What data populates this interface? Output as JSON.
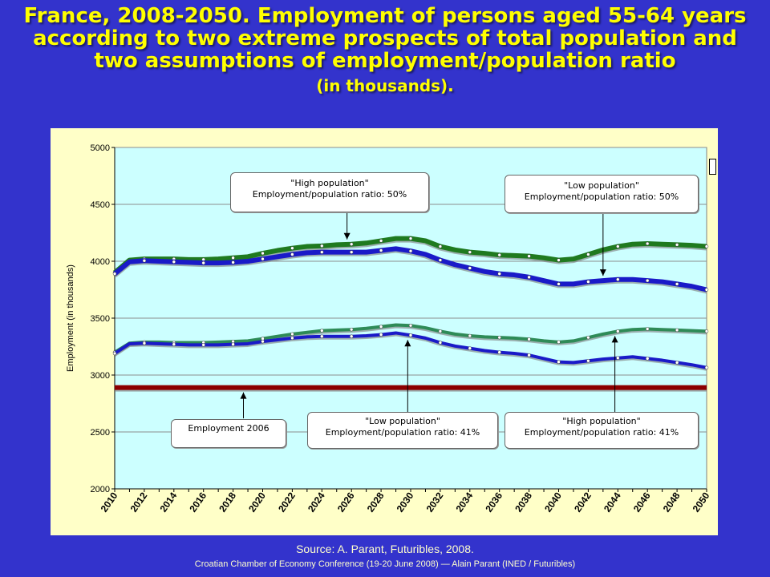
{
  "title": {
    "line1": "France, 2008-2050. Employment of persons aged  55-64 years",
    "line2": "according to two extreme prospects of total population and",
    "line3": "two assumptions of employment/population ratio",
    "line4": "(in thousands)."
  },
  "source": "Source: A. Parant, Futuribles, 2008.",
  "footer": "Croatian Chamber of Economy Conference (19-20 June 2008) — Alain Parant (INED / Futuribles)",
  "callouts": {
    "c1": {
      "l1": "\"High population\"",
      "l2": "Employment/population ratio: 50%"
    },
    "c2": {
      "l1": "\"Low population\"",
      "l2": "Employment/population ratio: 50%"
    },
    "c3": {
      "l1": "Employment 2006",
      "l2": ""
    },
    "c4": {
      "l1": "\"Low population\"",
      "l2": "Employment/population ratio: 41%"
    },
    "c5": {
      "l1": "\"High population\"",
      "l2": "Employment/population ratio: 41%"
    }
  },
  "colors": {
    "high50": "#1f7a1f",
    "low50": "#1a1ac8",
    "high41": "#2e8b57",
    "low41": "#1a1ac8",
    "emp2006": "#8b0000",
    "plot_bg": "#ccffff",
    "panel_bg": "#ffffc8"
  },
  "chart_data": {
    "type": "line",
    "xlabel": "",
    "ylabel": "Employment (in thousands)",
    "ylim": [
      2000,
      5000
    ],
    "yticks": [
      2000,
      2500,
      3000,
      3500,
      4000,
      4500,
      5000
    ],
    "xticks": [
      "2010",
      "2012",
      "2014",
      "2016",
      "2018",
      "2020",
      "2022",
      "2024",
      "2026",
      "2028",
      "2030",
      "2032",
      "2034",
      "2036",
      "2038",
      "2040",
      "2042",
      "2044",
      "2046",
      "2048",
      "2050"
    ],
    "x": [
      2010,
      2011,
      2012,
      2013,
      2014,
      2015,
      2016,
      2017,
      2018,
      2019,
      2020,
      2021,
      2022,
      2023,
      2024,
      2025,
      2026,
      2027,
      2028,
      2029,
      2030,
      2031,
      2032,
      2033,
      2034,
      2035,
      2036,
      2037,
      2038,
      2039,
      2040,
      2041,
      2042,
      2043,
      2044,
      2045,
      2046,
      2047,
      2048,
      2049,
      2050
    ],
    "grid": true,
    "series": [
      {
        "key": "high50",
        "values": [
          3900,
          4010,
          4020,
          4020,
          4020,
          4015,
          4015,
          4020,
          4030,
          4040,
          4070,
          4095,
          4115,
          4130,
          4135,
          4145,
          4150,
          4160,
          4180,
          4200,
          4200,
          4180,
          4130,
          4100,
          4080,
          4070,
          4055,
          4050,
          4045,
          4030,
          4010,
          4020,
          4060,
          4100,
          4130,
          4150,
          4155,
          4150,
          4145,
          4140,
          4130
        ]
      },
      {
        "key": "low50",
        "values": [
          3890,
          3995,
          4005,
          4000,
          3995,
          3990,
          3985,
          3985,
          3990,
          4000,
          4020,
          4040,
          4060,
          4075,
          4080,
          4080,
          4080,
          4080,
          4095,
          4110,
          4090,
          4060,
          4010,
          3970,
          3940,
          3910,
          3890,
          3880,
          3860,
          3830,
          3800,
          3800,
          3820,
          3830,
          3840,
          3840,
          3830,
          3820,
          3800,
          3780,
          3750
        ]
      },
      {
        "key": "high41",
        "values": [
          3200,
          3280,
          3290,
          3290,
          3285,
          3285,
          3285,
          3290,
          3295,
          3300,
          3320,
          3340,
          3360,
          3375,
          3390,
          3395,
          3400,
          3410,
          3425,
          3440,
          3435,
          3415,
          3385,
          3360,
          3345,
          3335,
          3330,
          3325,
          3315,
          3300,
          3290,
          3300,
          3330,
          3360,
          3385,
          3400,
          3405,
          3400,
          3395,
          3390,
          3385
        ]
      },
      {
        "key": "low41",
        "values": [
          3190,
          3275,
          3280,
          3275,
          3270,
          3265,
          3265,
          3265,
          3270,
          3275,
          3295,
          3310,
          3325,
          3335,
          3340,
          3340,
          3340,
          3345,
          3355,
          3370,
          3350,
          3325,
          3285,
          3255,
          3235,
          3215,
          3200,
          3190,
          3175,
          3145,
          3115,
          3110,
          3125,
          3140,
          3150,
          3160,
          3145,
          3130,
          3110,
          3090,
          3065
        ]
      },
      {
        "key": "emp2006",
        "values": [
          2890,
          2890,
          2890,
          2890,
          2890,
          2890,
          2890,
          2890,
          2890,
          2890,
          2890,
          2890,
          2890,
          2890,
          2890,
          2890,
          2890,
          2890,
          2890,
          2890,
          2890,
          2890,
          2890,
          2890,
          2890,
          2890,
          2890,
          2890,
          2890,
          2890,
          2890,
          2890,
          2890,
          2890,
          2890,
          2890,
          2890,
          2890,
          2890,
          2890,
          2890
        ]
      }
    ]
  }
}
